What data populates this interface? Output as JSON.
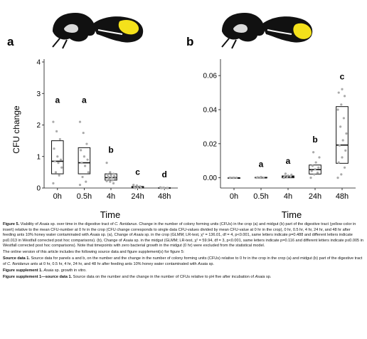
{
  "figure": {
    "panel_a_letter": "a",
    "panel_b_letter": "b",
    "ylabel": "CFU change",
    "xlabel": "Time",
    "ant_icon": "ant-head-thorax-icon",
    "highlight_color": "#f4e11b",
    "box_color": "#111111",
    "point_color": "#aaaaaa"
  },
  "chart_data": [
    {
      "type": "box",
      "panel": "a",
      "categories": [
        "0h",
        "0.5h",
        "4h",
        "24h",
        "48h"
      ],
      "ylim": [
        0,
        4
      ],
      "yticks": [
        "0",
        "1",
        "2",
        "3",
        "4"
      ],
      "ylabel": "CFU change",
      "xlabel": "Time",
      "grid": false,
      "boxes": [
        {
          "q1": 0.45,
          "median": 0.85,
          "q3": 1.5
        },
        {
          "q1": 0.45,
          "median": 0.8,
          "q3": 1.28
        },
        {
          "q1": 0.25,
          "median": 0.33,
          "q3": 0.45
        },
        {
          "q1": 0.0,
          "median": 0.02,
          "q3": 0.05
        },
        {
          "q1": 0.0,
          "median": 0.0,
          "q3": 0.01
        }
      ],
      "letters": [
        "a",
        "a",
        "b",
        "c",
        "d"
      ],
      "points": [
        [
          2.1,
          1.8,
          1.55,
          1.25,
          1.0,
          0.9,
          0.85,
          0.8,
          0.65,
          0.5,
          0.4,
          0.15
        ],
        [
          2.1,
          1.75,
          1.4,
          1.2,
          1.0,
          0.9,
          0.8,
          0.7,
          0.5,
          0.35,
          0.2,
          0.1
        ],
        [
          0.8,
          0.5,
          0.45,
          0.42,
          0.4,
          0.38,
          0.35,
          0.33,
          0.3,
          0.28,
          0.25,
          0.22,
          0.2,
          0.15
        ],
        [
          0.1,
          0.08,
          0.05,
          0.03,
          0.02,
          0.0,
          0.0
        ],
        [
          0.02,
          0.01,
          0.0,
          0.0,
          0.0,
          0.0,
          0.0
        ]
      ]
    },
    {
      "type": "box",
      "panel": "b",
      "categories": [
        "0h",
        "0.5h",
        "4h",
        "24h",
        "48h"
      ],
      "ylim": [
        -0.006,
        0.068
      ],
      "yticks": [
        "0.00",
        "0.02",
        "0.04",
        "0.06"
      ],
      "xlabel": "Time",
      "grid": false,
      "boxes": [
        {
          "q1": 0.0,
          "median": 0.0,
          "q3": 0.0
        },
        {
          "q1": 0.0,
          "median": 0.0,
          "q3": 0.0003
        },
        {
          "q1": 0.0,
          "median": 0.0006,
          "q3": 0.0011
        },
        {
          "q1": 0.0022,
          "median": 0.0048,
          "q3": 0.0075
        },
        {
          "q1": 0.0085,
          "median": 0.0192,
          "q3": 0.0418
        }
      ],
      "letters": [
        "",
        "a",
        "a",
        "b",
        "c"
      ],
      "points": [
        [
          0.0,
          0.0,
          0.0,
          0.0,
          0.0
        ],
        [
          0.0,
          0.0,
          0.0,
          0.0003,
          0.0005
        ],
        [
          0.0,
          0.0004,
          0.0007,
          0.001,
          0.0013,
          0.0018,
          0.0024
        ],
        [
          0.0,
          0.002,
          0.003,
          0.004,
          0.005,
          0.006,
          0.007,
          0.009,
          0.012,
          0.015
        ],
        [
          0.0,
          0.002,
          0.006,
          0.009,
          0.012,
          0.016,
          0.019,
          0.022,
          0.026,
          0.03,
          0.035,
          0.04,
          0.043,
          0.048,
          0.05,
          0.052
        ]
      ]
    }
  ],
  "caption": {
    "p1": [
      {
        "t": "Figure 5. ",
        "s": "b"
      },
      {
        "t": "Viability of "
      },
      {
        "t": "Asaia",
        "s": "i"
      },
      {
        "t": " sp. over time in the digestive tract of "
      },
      {
        "t": "C. floridanus",
        "s": "i"
      },
      {
        "t": ". Change in the number of colony forming units (CFUs) in the crop (a) and midgut (b) part of the digestive tract (yellow color in insert) relative to the mean CFU-number at 0 hr in the crop (CFU change corresponds to single data CFU-values divided by mean CFU-value at 0 hr in the crop), 0 hr, 0.5 hr, 4 hr, 24 hr, and 48 hr after feeding ants 10% honey water contaminated with "
      },
      {
        "t": "Asaia",
        "s": "i"
      },
      {
        "t": " sp. (a), Change of "
      },
      {
        "t": "Asaia",
        "s": "i"
      },
      {
        "t": " sp. in the crop (GLMM; LR-test, χ² = 136.01, df = 4, p<0.001, same letters indicate p=0.488 and different letters indicate p≤0.013 in Westfall corrected post hoc comparisons). (b), Change of "
      },
      {
        "t": "Asaia",
        "s": "i"
      },
      {
        "t": " sp. in the midgut (GLMM; LR-test, χ² = 59.94, df = 3, p<0.001, same letters indicate p=0.116 and different letters indicate p≤0.005 in Westfall corrected post hoc comparisons). Note that timepoints with zero bacterial growth in the midgut (0 hr) were excluded from the statistical model."
      }
    ],
    "p2": [
      {
        "t": "The online version of this article includes the following source data and figure supplement(s) for figure 5:"
      }
    ],
    "p3": [
      {
        "t": "Source data 1. ",
        "s": "b"
      },
      {
        "t": "Source data for panels a and b, on the number and the change in the number of colony forming units (CFUs) relative to 0 hr in the crop in the crop (a) and midgut (b) part of the digestive tract of "
      },
      {
        "t": "C. floridanus",
        "s": "i"
      },
      {
        "t": " ants at 0 hr, 0.5 hr, 4 hr, 24 hr, and 48 hr after feeding ants 10% honey water contaminated with "
      },
      {
        "t": "Asaia",
        "s": "i"
      },
      {
        "t": " sp."
      }
    ],
    "p4": [
      {
        "t": "Figure supplement 1. ",
        "s": "b"
      },
      {
        "t": "Asaia",
        "s": "i"
      },
      {
        "t": " sp. growth in vitro."
      }
    ],
    "p5": [
      {
        "t": "Figure supplement 1—source data 1. ",
        "s": "b"
      },
      {
        "t": "Source data on the number and the change in the number of CFUs relative to pH five after incubation of "
      },
      {
        "t": "Asaia",
        "s": "i"
      },
      {
        "t": " sp."
      }
    ]
  }
}
